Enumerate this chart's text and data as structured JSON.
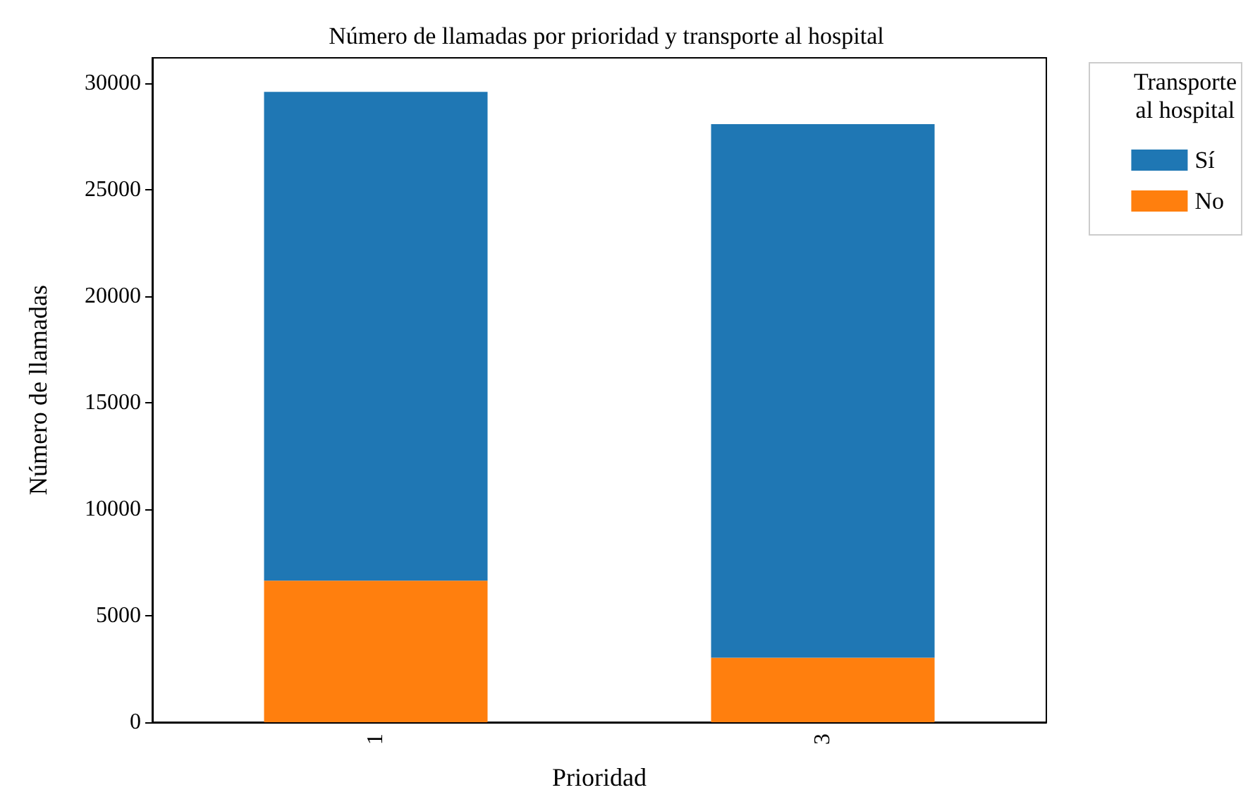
{
  "chart_data": {
    "type": "bar",
    "title": "Número de llamadas por prioridad y transporte al hospital",
    "xlabel": "Prioridad",
    "ylabel": "Número de llamadas",
    "legend_title": "Transporte\nal hospital",
    "categories": [
      "1",
      "3"
    ],
    "stacked": true,
    "series": [
      {
        "name": "No",
        "color": "#ff7f0e",
        "values": [
          6650,
          3030
        ]
      },
      {
        "name": "Sí",
        "color": "#1f77b4",
        "values": [
          22950,
          25060
        ]
      }
    ],
    "ylim": [
      0,
      31200
    ],
    "yticks": [
      0,
      5000,
      10000,
      15000,
      20000,
      25000,
      30000
    ],
    "grid": false,
    "legend": "top right"
  }
}
